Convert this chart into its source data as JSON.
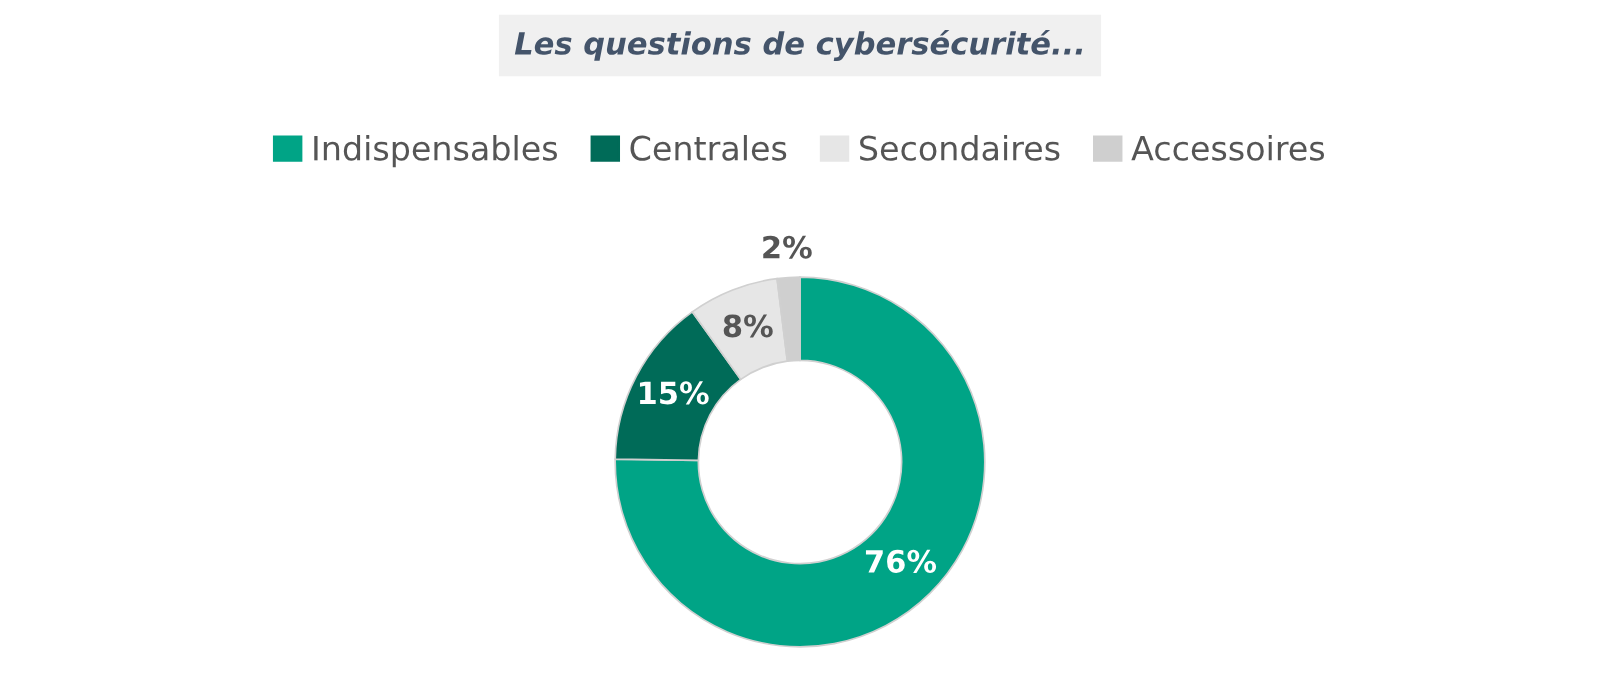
{
  "chart_data": {
    "type": "donut",
    "title": "Les questions de cybersécurité...",
    "categories": [
      "Indispensables",
      "Centrales",
      "Secondaires",
      "Accessoires"
    ],
    "values": [
      76,
      15,
      8,
      2
    ],
    "colors": [
      "#00a486",
      "#006b58",
      "#e6e6e6",
      "#cfcfcf"
    ],
    "value_labels": [
      "76%",
      "15%",
      "8%",
      "2%"
    ],
    "legend": "top"
  }
}
